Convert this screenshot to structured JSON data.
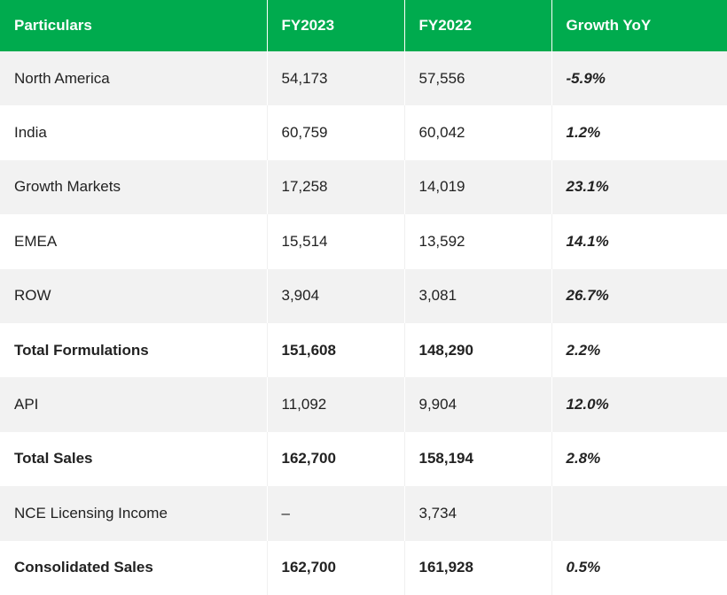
{
  "table": {
    "header": [
      "Particulars",
      "FY2023",
      "FY2022",
      "Growth YoY"
    ],
    "rows": [
      [
        "North America",
        "54,173",
        "57,556",
        "-5.9%"
      ],
      [
        "India",
        "60,759",
        "60,042",
        "1.2%"
      ],
      [
        "Growth Markets",
        "17,258",
        "14,019",
        "23.1%"
      ],
      [
        "EMEA",
        "15,514",
        "13,592",
        "14.1%"
      ],
      [
        "ROW",
        "3,904",
        "3,081",
        "26.7%"
      ],
      [
        "Total Formulations",
        "151,608",
        "148,290",
        "2.2%"
      ],
      [
        "API",
        "11,092",
        "9,904",
        "12.0%"
      ],
      [
        "Total Sales",
        "162,700",
        "158,194",
        "2.8%"
      ],
      [
        "NCE Licensing Income",
        "–",
        "3,734"
      ],
      [
        "Consolidated Sales",
        "162,700",
        "161,928",
        "0.5%"
      ]
    ]
  }
}
